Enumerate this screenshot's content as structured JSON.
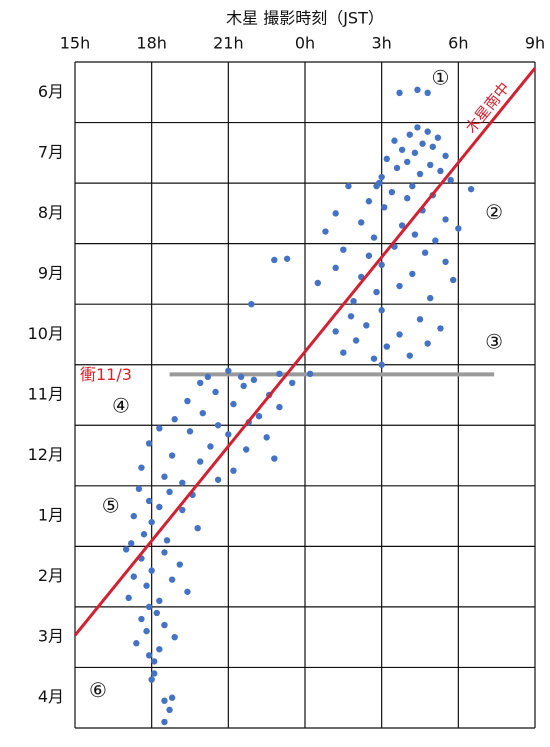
{
  "chart_data": {
    "type": "scatter",
    "title": "木星 撮影時刻（JST）",
    "xlim": [
      15,
      33
    ],
    "xticks": [
      {
        "value": 15,
        "label": "15h"
      },
      {
        "value": 18,
        "label": "18h"
      },
      {
        "value": 21,
        "label": "21h"
      },
      {
        "value": 24,
        "label": "0h"
      },
      {
        "value": 27,
        "label": "3h"
      },
      {
        "value": 30,
        "label": "6h"
      },
      {
        "value": 33,
        "label": "9h"
      }
    ],
    "ylim": [
      11,
      0
    ],
    "yticks": [
      0,
      1,
      2,
      3,
      4,
      5,
      6,
      7,
      8,
      9,
      10,
      11
    ],
    "categories": [
      "6月",
      "7月",
      "8月",
      "9月",
      "10月",
      "11月",
      "12月",
      "1月",
      "2月",
      "3月",
      "4月"
    ],
    "color": "#4472c4",
    "x": [
      27.7,
      28.4,
      28.8,
      28.4,
      28.8,
      28.1,
      29.2,
      27.5,
      28.6,
      29.0,
      27.8,
      28.3,
      29.5,
      27.2,
      28.0,
      28.9,
      27.6,
      29.3,
      28.5,
      27.0,
      29.7,
      26.9,
      28.2,
      26.8,
      25.7,
      27.4,
      29.0,
      28.0,
      26.5,
      30.5,
      27.1,
      28.6,
      25.2,
      29.5,
      26.2,
      27.8,
      30.0,
      24.8,
      28.3,
      26.7,
      29.1,
      27.5,
      25.5,
      28.7,
      26.5,
      23.3,
      22.8,
      29.5,
      27.0,
      25.2,
      28.2,
      26.2,
      29.8,
      24.5,
      27.7,
      21.9,
      26.8,
      28.9,
      25.9,
      27.0,
      25.8,
      28.5,
      26.4,
      29.3,
      25.2,
      27.7,
      26.0,
      28.8,
      27.2,
      25.5,
      28.1,
      26.7,
      27.0,
      21.5,
      21.0,
      23.0,
      24.2,
      20.2,
      22.0,
      19.9,
      21.6,
      23.5,
      20.5,
      22.6,
      19.4,
      21.2,
      23.0,
      20.0,
      22.2,
      18.9,
      21.8,
      20.6,
      18.3,
      19.5,
      21.0,
      22.5,
      17.9,
      20.3,
      21.7,
      18.8,
      22.8,
      19.9,
      17.6,
      21.2,
      18.5,
      20.6,
      19.2,
      17.5,
      18.7,
      19.6,
      17.9,
      18.3,
      19.2,
      17.3,
      18.0,
      19.8,
      17.7,
      18.6,
      17.2,
      17.0,
      18.5,
      17.6,
      19.1,
      18.0,
      17.3,
      18.8,
      17.8,
      19.4,
      17.1,
      18.3,
      17.9,
      18.2,
      17.6,
      18.5,
      17.8,
      18.9,
      17.4,
      18.3,
      17.9,
      18.1,
      18.1,
      18.0,
      18.8,
      18.5,
      18.7,
      18.5
    ],
    "y": [
      0.51,
      0.46,
      0.51,
      1.08,
      1.15,
      1.2,
      1.25,
      1.3,
      1.35,
      1.4,
      1.45,
      1.5,
      1.55,
      1.6,
      1.65,
      1.7,
      1.75,
      1.8,
      1.85,
      1.9,
      1.95,
      2.0,
      2.05,
      2.05,
      2.05,
      2.15,
      2.2,
      2.25,
      2.3,
      2.1,
      2.4,
      2.45,
      2.5,
      2.6,
      2.65,
      2.7,
      2.75,
      2.8,
      2.85,
      2.9,
      2.95,
      3.05,
      3.1,
      3.15,
      3.2,
      3.25,
      3.27,
      3.3,
      3.35,
      3.4,
      3.5,
      3.55,
      3.6,
      3.65,
      3.7,
      4.0,
      3.8,
      3.9,
      3.95,
      4.1,
      4.2,
      4.25,
      4.35,
      4.4,
      4.45,
      4.5,
      4.6,
      4.65,
      4.7,
      4.8,
      4.85,
      4.9,
      5.0,
      5.2,
      5.1,
      5.15,
      5.15,
      5.2,
      5.25,
      5.3,
      5.35,
      5.3,
      5.45,
      5.5,
      5.6,
      5.65,
      5.7,
      5.8,
      5.85,
      5.9,
      5.95,
      6.0,
      6.05,
      6.1,
      6.15,
      6.2,
      6.3,
      6.35,
      6.4,
      6.5,
      6.55,
      6.6,
      6.7,
      6.75,
      6.85,
      6.9,
      6.95,
      7.05,
      7.1,
      7.15,
      7.25,
      7.35,
      7.4,
      7.5,
      7.6,
      7.7,
      7.8,
      7.9,
      7.95,
      8.05,
      8.1,
      8.2,
      8.3,
      8.4,
      8.5,
      8.55,
      8.65,
      8.75,
      8.85,
      8.9,
      9.0,
      9.1,
      9.2,
      9.3,
      9.4,
      9.5,
      9.6,
      9.7,
      9.8,
      9.9,
      10.1,
      10.2,
      10.5,
      10.55,
      10.7,
      10.9
    ],
    "transit_line": {
      "name": "木星南中",
      "color": "#d42030",
      "x": [
        15,
        33
      ],
      "y": [
        9.47,
        0.1
      ]
    },
    "opposition_line": {
      "label": "衝11/3",
      "color": "#e0202a",
      "line_color": "#9a9a9a",
      "x": [
        18.7,
        31.4
      ],
      "y": [
        5.16,
        5.16
      ]
    },
    "annotations": [
      {
        "text": "①",
        "x": 29.3,
        "y": 0.28
      },
      {
        "text": "②",
        "x": 31.4,
        "y": 2.5
      },
      {
        "text": "③",
        "x": 31.4,
        "y": 4.64
      },
      {
        "text": "④",
        "x": 16.8,
        "y": 5.7
      },
      {
        "text": "⑤",
        "x": 16.4,
        "y": 7.35
      },
      {
        "text": "⑥",
        "x": 15.9,
        "y": 10.4
      }
    ]
  }
}
